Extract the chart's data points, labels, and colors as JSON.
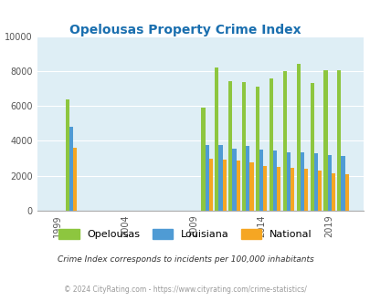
{
  "title": "Opelousas Property Crime Index",
  "title_color": "#1a6faf",
  "background_color": "#deeef5",
  "plot_bg_color": "#deeef5",
  "fig_bg_color": "#ffffff",
  "years": [
    2000,
    2010,
    2011,
    2012,
    2013,
    2014,
    2015,
    2016,
    2017,
    2018,
    2019,
    2020
  ],
  "opelousas": [
    6400,
    5900,
    8200,
    7400,
    7350,
    7100,
    7550,
    8000,
    8400,
    7300,
    8050,
    8050
  ],
  "louisiana": [
    4800,
    3750,
    3750,
    3550,
    3700,
    3500,
    3450,
    3350,
    3350,
    3300,
    3200,
    3150
  ],
  "national": [
    3600,
    3000,
    2900,
    2850,
    2750,
    2550,
    2500,
    2450,
    2400,
    2300,
    2150,
    2100
  ],
  "opelousas_color": "#8dc63f",
  "louisiana_color": "#4f9bd4",
  "national_color": "#f5a623",
  "xtick_labels": [
    "1999",
    "2004",
    "2009",
    "2014",
    "2019"
  ],
  "xtick_positions": [
    1999,
    2004,
    2009,
    2014,
    2019
  ],
  "xlim": [
    1997.5,
    2021.5
  ],
  "ylim": [
    0,
    10000
  ],
  "yticks": [
    0,
    2000,
    4000,
    6000,
    8000,
    10000
  ],
  "bar_width": 0.28,
  "legend_labels": [
    "Opelousas",
    "Louisiana",
    "National"
  ],
  "footnote1": "Crime Index corresponds to incidents per 100,000 inhabitants",
  "footnote2": "© 2024 CityRating.com - https://www.cityrating.com/crime-statistics/",
  "footnote1_color": "#333333",
  "footnote2_color": "#999999"
}
